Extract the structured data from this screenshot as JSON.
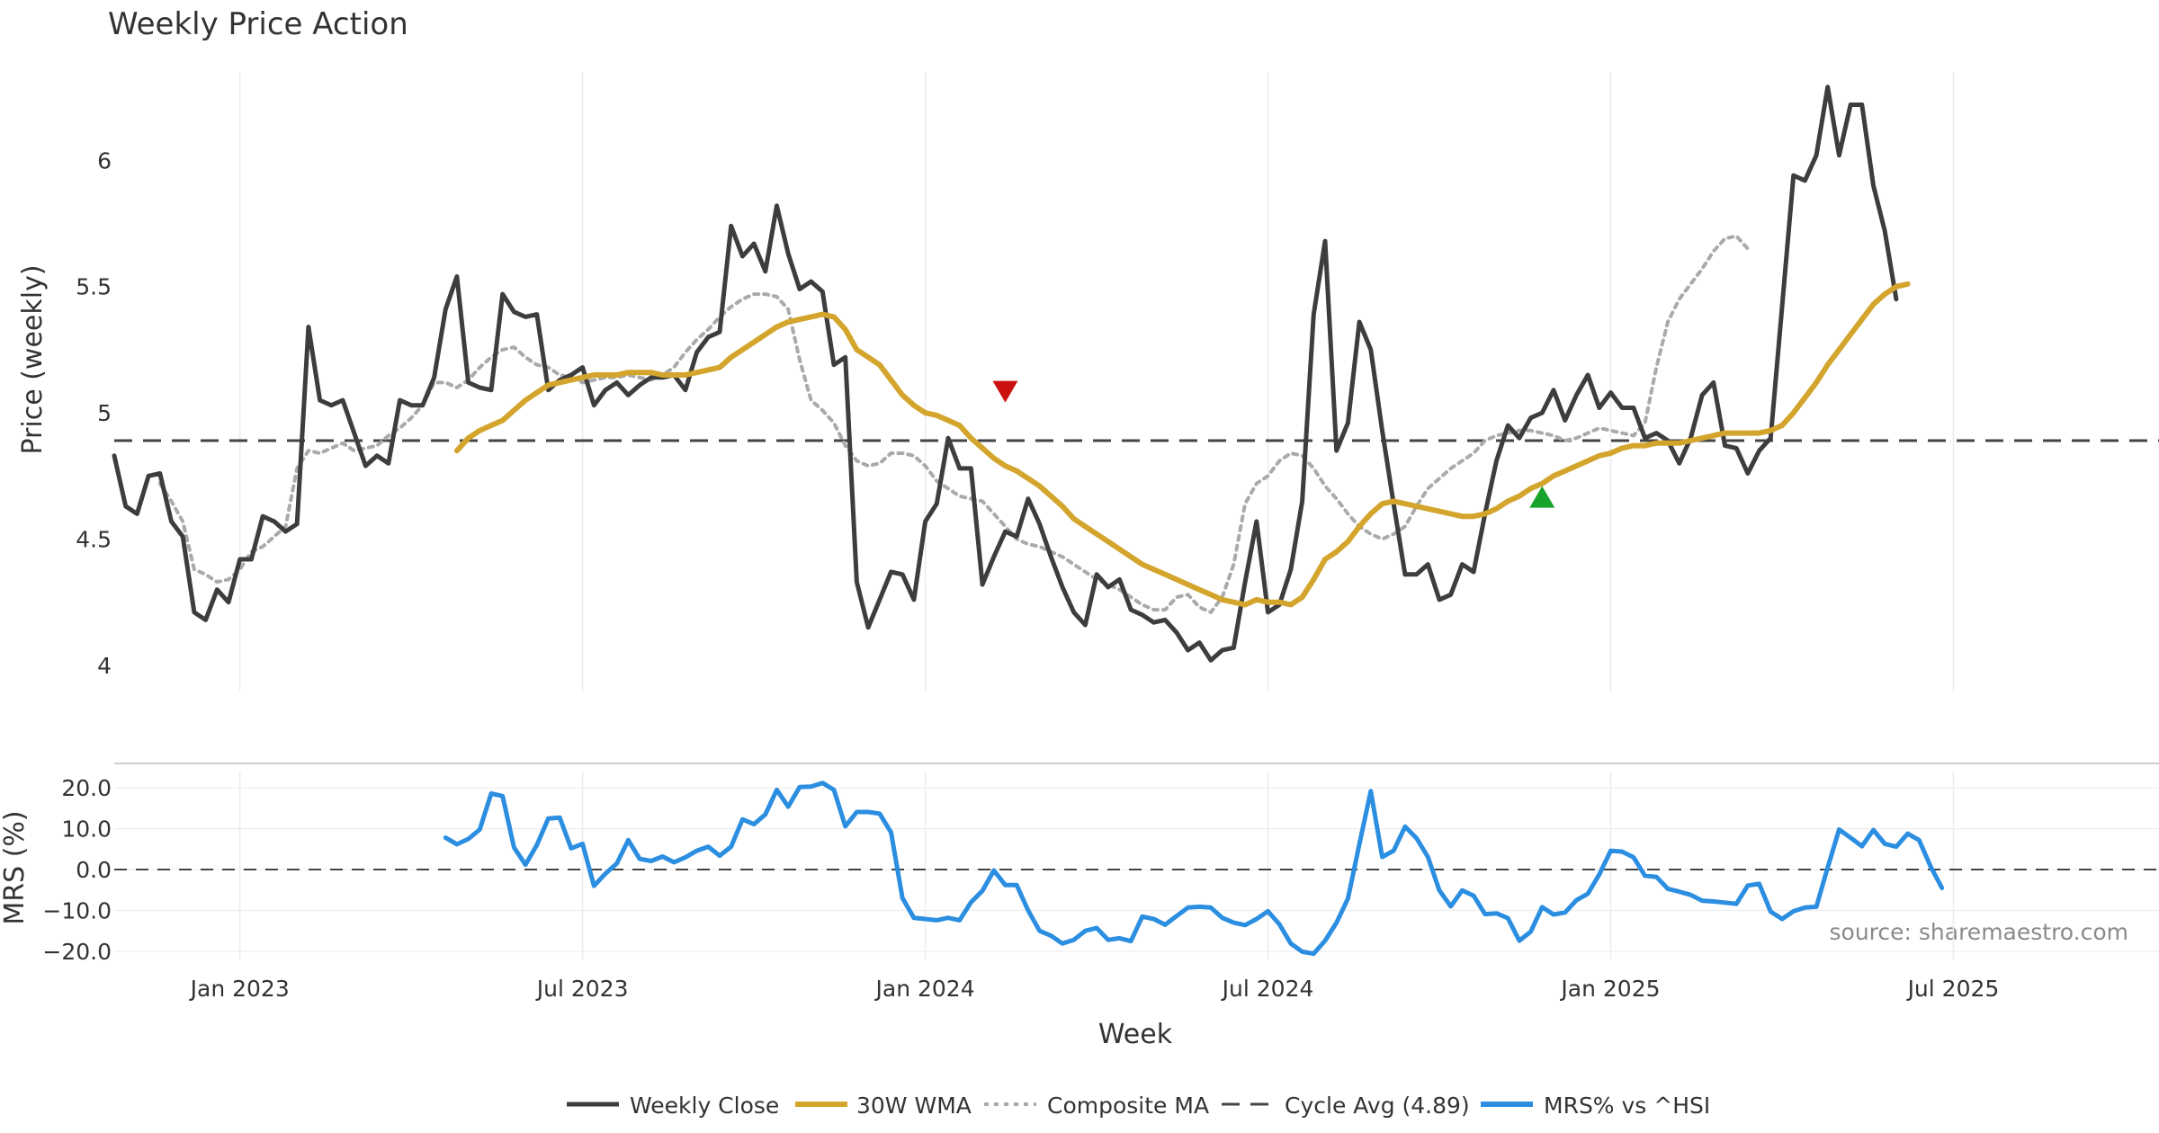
{
  "chart_data": {
    "type": "line",
    "title": "Weekly Price Action",
    "source": "source: sharemaestro.com",
    "xlabel": "Week",
    "x_ticks": [
      "Jan 2023",
      "Jul 2023",
      "Jan 2024",
      "Jul 2024",
      "Jan 2025",
      "Jul 2025"
    ],
    "x_tick_weeks": [
      12,
      42,
      72,
      102,
      132,
      162
    ],
    "x_range_weeks": [
      1,
      180
    ],
    "price_panel": {
      "ylabel": "Price (weekly)",
      "ylim": [
        3.9,
        6.35
      ],
      "yticks": [
        "4",
        "4.5",
        "5",
        "5.5",
        "6"
      ],
      "ytick_values": [
        4,
        4.5,
        5,
        5.5,
        6
      ],
      "cycle_avg_value": 4.89
    },
    "mrs_panel": {
      "ylabel": "MRS (%)",
      "ylim": [
        -22,
        24
      ],
      "yticks": [
        "20.0",
        "10.0",
        "0.0",
        "−10.0",
        "−20.0"
      ],
      "ytick_values": [
        20,
        10,
        0,
        -10,
        -20
      ],
      "zero_line": 0
    },
    "legend": {
      "placement": "bottom-center",
      "entries": [
        "Weekly Close",
        "30W WMA",
        "Composite MA",
        "Cycle Avg (4.89)",
        "MRS% vs ^HSI"
      ]
    },
    "signals": [
      {
        "type": "sell",
        "week": 79,
        "value": 5.08
      },
      {
        "type": "buy",
        "week": 126,
        "value": 4.66
      }
    ],
    "series": [
      {
        "name": "Weekly Close",
        "color": "#3d3d3d",
        "start_week": 1,
        "values": [
          4.83,
          4.63,
          4.6,
          4.75,
          4.76,
          4.57,
          4.51,
          4.21,
          4.18,
          4.3,
          4.25,
          4.42,
          4.42,
          4.59,
          4.57,
          4.53,
          4.56,
          5.34,
          5.05,
          5.03,
          5.05,
          4.92,
          4.79,
          4.83,
          4.8,
          5.05,
          5.03,
          5.03,
          5.14,
          5.41,
          5.54,
          5.12,
          5.1,
          5.09,
          5.47,
          5.4,
          5.38,
          5.39,
          5.09,
          5.13,
          5.15,
          5.18,
          5.03,
          5.09,
          5.12,
          5.07,
          5.11,
          5.14,
          5.14,
          5.15,
          5.09,
          5.24,
          5.3,
          5.32,
          5.74,
          5.62,
          5.67,
          5.56,
          5.82,
          5.63,
          5.49,
          5.52,
          5.48,
          5.19,
          5.22,
          4.33,
          4.15,
          4.26,
          4.37,
          4.36,
          4.26,
          4.57,
          4.64,
          4.9,
          4.78,
          4.78,
          4.32,
          4.43,
          4.53,
          4.51,
          4.66,
          4.56,
          4.43,
          4.31,
          4.21,
          4.16,
          4.36,
          4.31,
          4.34,
          4.22,
          4.2,
          4.17,
          4.18,
          4.13,
          4.06,
          4.09,
          4.02,
          4.06,
          4.07,
          4.33,
          4.57,
          4.21,
          4.24,
          4.38,
          4.65,
          5.39,
          5.68,
          4.85,
          4.96,
          5.36,
          5.25,
          4.93,
          4.64,
          4.36,
          4.36,
          4.4,
          4.26,
          4.28,
          4.4,
          4.37,
          4.6,
          4.81,
          4.95,
          4.9,
          4.98,
          5.0,
          5.09,
          4.97,
          5.07,
          5.15,
          5.02,
          5.08,
          5.02,
          5.02,
          4.9,
          4.92,
          4.89,
          4.8,
          4.9,
          5.07,
          5.12,
          4.87,
          4.86,
          4.76,
          4.85,
          4.9,
          5.42,
          5.94,
          5.92,
          6.02,
          6.29,
          6.02,
          6.22,
          6.22,
          5.9,
          5.72,
          5.45
        ]
      },
      {
        "name": "30W WMA",
        "color": "#d4a52c",
        "start_week": 31,
        "values": [
          4.85,
          4.9,
          4.93,
          4.95,
          4.97,
          5.01,
          5.05,
          5.08,
          5.11,
          5.12,
          5.13,
          5.14,
          5.15,
          5.15,
          5.15,
          5.16,
          5.16,
          5.16,
          5.15,
          5.15,
          5.15,
          5.16,
          5.17,
          5.18,
          5.22,
          5.25,
          5.28,
          5.31,
          5.34,
          5.36,
          5.37,
          5.38,
          5.39,
          5.38,
          5.33,
          5.25,
          5.22,
          5.19,
          5.13,
          5.07,
          5.03,
          5.0,
          4.99,
          4.97,
          4.95,
          4.9,
          4.86,
          4.82,
          4.79,
          4.77,
          4.74,
          4.71,
          4.67,
          4.63,
          4.58,
          4.55,
          4.52,
          4.49,
          4.46,
          4.43,
          4.4,
          4.38,
          4.36,
          4.34,
          4.32,
          4.3,
          4.28,
          4.26,
          4.25,
          4.24,
          4.26,
          4.25,
          4.25,
          4.24,
          4.27,
          4.34,
          4.42,
          4.45,
          4.49,
          4.55,
          4.6,
          4.64,
          4.65,
          4.64,
          4.63,
          4.62,
          4.61,
          4.6,
          4.59,
          4.59,
          4.6,
          4.62,
          4.65,
          4.67,
          4.7,
          4.72,
          4.75,
          4.77,
          4.79,
          4.81,
          4.83,
          4.84,
          4.86,
          4.87,
          4.87,
          4.88,
          4.88,
          4.88,
          4.89,
          4.9,
          4.91,
          4.92,
          4.92,
          4.92,
          4.92,
          4.93,
          4.95,
          5.0,
          5.06,
          5.12,
          5.19,
          5.25,
          5.31,
          5.37,
          5.43,
          5.47,
          5.5,
          5.51
        ]
      },
      {
        "name": "Composite MA",
        "color": "#aaaaaa",
        "start_week": 5,
        "values": [
          4.72,
          4.65,
          4.57,
          4.38,
          4.36,
          4.33,
          4.34,
          4.38,
          4.45,
          4.47,
          4.51,
          4.55,
          4.78,
          4.85,
          4.84,
          4.86,
          4.88,
          4.85,
          4.86,
          4.87,
          4.91,
          4.94,
          4.98,
          5.03,
          5.12,
          5.12,
          5.1,
          5.13,
          5.18,
          5.22,
          5.25,
          5.26,
          5.22,
          5.19,
          5.18,
          5.15,
          5.14,
          5.12,
          5.13,
          5.14,
          5.14,
          5.15,
          5.14,
          5.13,
          5.15,
          5.18,
          5.24,
          5.29,
          5.33,
          5.38,
          5.42,
          5.45,
          5.47,
          5.47,
          5.46,
          5.41,
          5.21,
          5.05,
          5.01,
          4.96,
          4.87,
          4.81,
          4.79,
          4.8,
          4.84,
          4.84,
          4.83,
          4.79,
          4.73,
          4.7,
          4.67,
          4.66,
          4.65,
          4.6,
          4.55,
          4.5,
          4.48,
          4.47,
          4.45,
          4.43,
          4.4,
          4.37,
          4.34,
          4.32,
          4.3,
          4.27,
          4.24,
          4.22,
          4.22,
          4.27,
          4.28,
          4.23,
          4.21,
          4.27,
          4.4,
          4.64,
          4.72,
          4.75,
          4.81,
          4.84,
          4.83,
          4.78,
          4.71,
          4.66,
          4.6,
          4.55,
          4.52,
          4.5,
          4.52,
          4.55,
          4.63,
          4.7,
          4.74,
          4.78,
          4.81,
          4.84,
          4.89,
          4.91,
          4.92,
          4.93,
          4.93,
          4.92,
          4.91,
          4.89,
          4.9,
          4.92,
          4.94,
          4.93,
          4.92,
          4.91,
          4.96,
          5.18,
          5.36,
          5.45,
          5.51,
          5.57,
          5.64,
          5.69,
          5.7,
          5.65
        ]
      },
      {
        "name": "MRS% vs ^HSI",
        "color": "#2b8ee0",
        "start_week": 30,
        "values": [
          7.8,
          6.2,
          7.5,
          9.8,
          18.6,
          18.0,
          5.4,
          1.2,
          6.0,
          12.5,
          12.7,
          5.2,
          6.3,
          -4.0,
          -1.0,
          1.5,
          7.2,
          2.6,
          2.1,
          3.2,
          1.8,
          3.0,
          4.6,
          5.6,
          3.4,
          5.6,
          12.3,
          11.1,
          13.5,
          19.5,
          15.4,
          20.2,
          20.3,
          21.2,
          19.5,
          10.6,
          14.1,
          14.1,
          13.7,
          9.1,
          -7.0,
          -11.8,
          -12.1,
          -12.4,
          -11.8,
          -12.4,
          -8.0,
          -5.2,
          -0.2,
          -3.8,
          -3.8,
          -10.0,
          -15.0,
          -16.2,
          -18.1,
          -17.2,
          -15.0,
          -14.3,
          -17.2,
          -16.8,
          -17.5,
          -11.5,
          -12.1,
          -13.5,
          -11.4,
          -9.3,
          -9.1,
          -9.3,
          -11.8,
          -13.0,
          -13.6,
          -12.1,
          -10.2,
          -13.4,
          -18.1,
          -20.1,
          -20.6,
          -17.4,
          -13.0,
          -7.1,
          6.2,
          19.2,
          3.1,
          4.6,
          10.5,
          7.7,
          3.1,
          -5.1,
          -9.0,
          -5.1,
          -6.4,
          -10.9,
          -10.7,
          -11.9,
          -17.4,
          -15.2,
          -9.2,
          -11.0,
          -10.5,
          -7.5,
          -5.9,
          -1.2,
          4.6,
          4.4,
          3.0,
          -1.5,
          -1.8,
          -4.7,
          -5.4,
          -6.2,
          -7.6,
          -7.8,
          -8.1,
          -8.4,
          -3.9,
          -3.5,
          -10.3,
          -12.1,
          -10.2,
          -9.3,
          -9.1,
          0.5,
          9.8,
          7.8,
          5.7,
          9.7,
          6.3,
          5.6,
          8.8,
          7.2,
          0.8,
          -4.5
        ]
      }
    ]
  }
}
